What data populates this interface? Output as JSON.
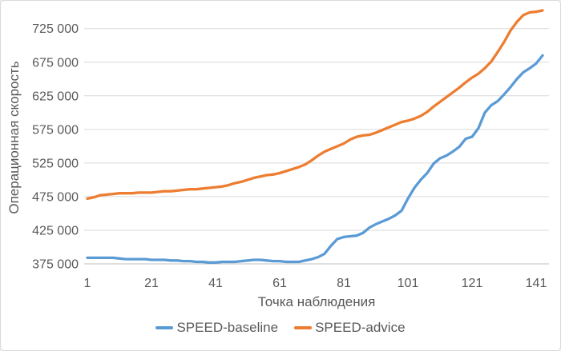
{
  "colors": {
    "background": "#FFFFFF",
    "border": "#D9D9D9",
    "gridline": "#D9D9D9",
    "axis_line": "#BFBFBF",
    "text": "#595959",
    "baseline_series": "#5B9BD5",
    "advice_series": "#ED7D31"
  },
  "legend": {
    "items": [
      {
        "label": "SPEED-baseline",
        "color": "#5B9BD5"
      },
      {
        "label": "SPEED-advice",
        "color": "#ED7D31"
      }
    ]
  },
  "chart_data": {
    "type": "line",
    "title": "",
    "xlabel": "Точка наблюдения",
    "ylabel": "Операционная скорость",
    "grid": true,
    "legend_position": "bottom",
    "xlim": [
      1,
      143
    ],
    "ylim": [
      375000,
      750000
    ],
    "x_ticks": [
      1,
      21,
      41,
      61,
      81,
      101,
      121,
      141
    ],
    "y_ticks": [
      375000,
      425000,
      475000,
      525000,
      575000,
      625000,
      675000,
      725000
    ],
    "y_tick_labels": [
      "375 000",
      "425 000",
      "475 000",
      "525 000",
      "575 000",
      "625 000",
      "675 000",
      "725 000"
    ],
    "x": [
      1,
      3,
      5,
      7,
      9,
      11,
      13,
      15,
      17,
      19,
      21,
      23,
      25,
      27,
      29,
      31,
      33,
      35,
      37,
      39,
      41,
      43,
      45,
      47,
      49,
      51,
      53,
      55,
      57,
      59,
      61,
      63,
      65,
      67,
      69,
      71,
      73,
      75,
      77,
      79,
      81,
      83,
      85,
      87,
      89,
      91,
      93,
      95,
      97,
      99,
      101,
      103,
      105,
      107,
      109,
      111,
      113,
      115,
      117,
      119,
      121,
      123,
      125,
      127,
      129,
      131,
      133,
      135,
      137,
      139,
      141,
      143
    ],
    "series": [
      {
        "name": "SPEED-baseline",
        "color": "#5B9BD5",
        "values": [
          384000,
          384000,
          384000,
          384000,
          384000,
          383000,
          382000,
          382000,
          382000,
          382000,
          381000,
          381000,
          381000,
          380000,
          380000,
          379000,
          379000,
          378000,
          378000,
          377000,
          377000,
          378000,
          378000,
          378000,
          379000,
          380000,
          381000,
          381000,
          380000,
          379000,
          379000,
          378000,
          378000,
          378000,
          380000,
          382000,
          385000,
          390000,
          402000,
          412000,
          415000,
          416000,
          417000,
          421000,
          429000,
          434000,
          438000,
          442000,
          447000,
          454000,
          472000,
          488000,
          500000,
          510000,
          524000,
          532000,
          536000,
          542000,
          549000,
          561000,
          564000,
          577000,
          600000,
          611000,
          617000,
          627000,
          638000,
          650000,
          660000,
          666000,
          673000,
          685000
        ]
      },
      {
        "name": "SPEED-advice",
        "color": "#ED7D31",
        "values": [
          472000,
          474000,
          477000,
          478000,
          479000,
          480000,
          480000,
          480000,
          481000,
          481000,
          481000,
          482000,
          483000,
          483000,
          484000,
          485000,
          486000,
          486000,
          487000,
          488000,
          489000,
          490000,
          492000,
          495000,
          497000,
          500000,
          503000,
          505000,
          507000,
          508000,
          510000,
          513000,
          516000,
          519000,
          523000,
          529000,
          536000,
          542000,
          546000,
          550000,
          554000,
          560000,
          564000,
          566000,
          567000,
          570000,
          574000,
          578000,
          582000,
          586000,
          588000,
          591000,
          595000,
          601000,
          609000,
          616000,
          623000,
          630000,
          637000,
          645000,
          652000,
          658000,
          666000,
          676000,
          690000,
          705000,
          722000,
          735000,
          745000,
          749000,
          750000,
          752000
        ]
      }
    ]
  }
}
